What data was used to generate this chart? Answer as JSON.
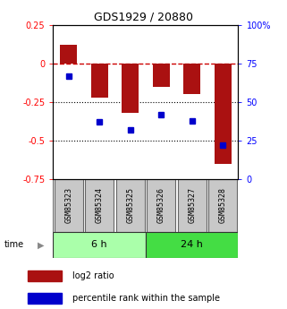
{
  "title": "GDS1929 / 20880",
  "samples": [
    "GSM85323",
    "GSM85324",
    "GSM85325",
    "GSM85326",
    "GSM85327",
    "GSM85328"
  ],
  "log2_ratio": [
    0.12,
    -0.22,
    -0.32,
    -0.15,
    -0.2,
    -0.65
  ],
  "percentile_rank": [
    67,
    37,
    32,
    42,
    38,
    22
  ],
  "group_labels": [
    "6 h",
    "24 h"
  ],
  "group_starts": [
    0,
    3
  ],
  "group_sizes": [
    3,
    3
  ],
  "group_colors": [
    "#AAFFAA",
    "#44DD44"
  ],
  "bar_color": "#AA1111",
  "dot_color": "#0000CC",
  "left_ylim": [
    -0.75,
    0.25
  ],
  "right_ylim": [
    0,
    100
  ],
  "left_yticks": [
    -0.75,
    -0.5,
    -0.25,
    0,
    0.25
  ],
  "right_yticks": [
    0,
    25,
    50,
    75,
    100
  ],
  "left_ytick_labels": [
    "-0.75",
    "-0.5",
    "-0.25",
    "0",
    "0.25"
  ],
  "right_ytick_labels": [
    "0",
    "25",
    "50",
    "75",
    "100%"
  ],
  "hline_y": [
    0,
    -0.25,
    -0.5
  ],
  "hline_styles": [
    "dashed",
    "dotted",
    "dotted"
  ],
  "hline_colors": [
    "#CC0000",
    "black",
    "black"
  ],
  "bar_width": 0.55,
  "legend_labels": [
    "log2 ratio",
    "percentile rank within the sample"
  ],
  "sample_box_color": "#C8C8C8",
  "title_fontsize": 9,
  "tick_fontsize": 7,
  "sample_fontsize": 6,
  "group_fontsize": 8,
  "legend_fontsize": 7
}
